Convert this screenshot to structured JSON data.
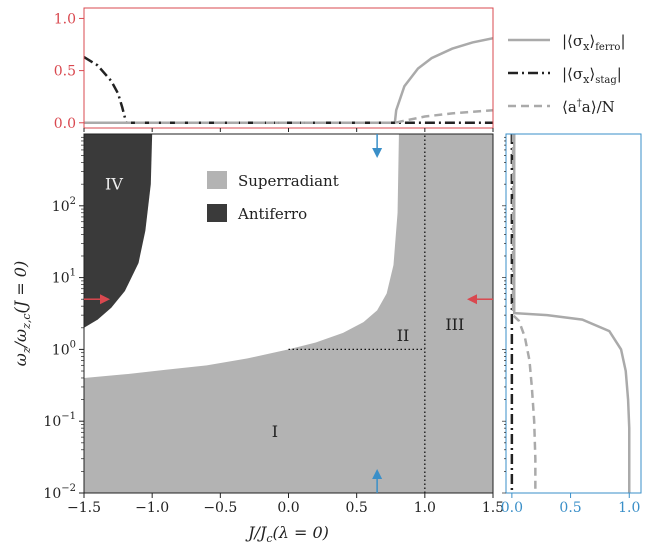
{
  "colors": {
    "superradiant": "#b3b3b3",
    "antiferro": "#3a3a3a",
    "ferro_curve": "#aaaaaa",
    "stag_curve": "#222222",
    "photon_curve": "#aaaaaa",
    "red_accent": "#d9484f",
    "blue_accent": "#3a8fc8"
  },
  "chart_data": [
    {
      "id": "phase-diagram",
      "type": "heatmap",
      "xlabel": "J/J_c(λ = 0)",
      "ylabel": "ω_z/ω_{z,c}(J = 0)",
      "xlim": [
        -1.5,
        1.5
      ],
      "ylim": [
        0.01,
        1000
      ],
      "yscale": "log",
      "xticks": [
        "−1.5",
        "−1.0",
        "−0.5",
        "0.0",
        "0.5",
        "1.0",
        "1.5"
      ],
      "yticks": [
        "10^{-2}",
        "10^{-1}",
        "10^{0}",
        "10^{1}",
        "10^{2}"
      ],
      "legend": [
        {
          "name": "Superradiant",
          "color": "superradiant"
        },
        {
          "name": "Antiferro",
          "color": "antiferro"
        }
      ],
      "legend_position": "top-center",
      "region_labels": [
        {
          "text": "I",
          "x": -0.1,
          "y": 0.06
        },
        {
          "text": "II",
          "x": 0.84,
          "y": 1.3
        },
        {
          "text": "III",
          "x": 1.22,
          "y": 1.85
        },
        {
          "text": "IV",
          "x": -1.28,
          "y": 170
        }
      ],
      "phase_boundary": {
        "x": [
          -1.5,
          -1.2,
          -0.9,
          -0.6,
          -0.3,
          0.0,
          0.2,
          0.4,
          0.55,
          0.65,
          0.72,
          0.77,
          0.8,
          0.81
        ],
        "y": [
          0.4,
          0.45,
          0.52,
          0.6,
          0.75,
          1.0,
          1.25,
          1.7,
          2.4,
          3.5,
          6,
          15,
          80,
          1000
        ]
      },
      "antiferro_boundary": {
        "x": [
          -1.5,
          -1.4,
          -1.3,
          -1.2,
          -1.1,
          -1.05,
          -1.01,
          -1.0
        ],
        "y": [
          2.0,
          2.6,
          3.8,
          6.5,
          16,
          45,
          200,
          1000
        ]
      },
      "dotted_lines": [
        {
          "x": [
            0.0,
            1.0
          ],
          "y": [
            1.0,
            1.0
          ]
        },
        {
          "x": [
            1.0,
            1.0
          ],
          "y": [
            0.01,
            1000
          ]
        }
      ],
      "arrows": [
        {
          "color": "blue_accent",
          "x": 0.65,
          "y": 700,
          "direction": "down"
        },
        {
          "color": "blue_accent",
          "x": 0.65,
          "y": 0.012,
          "direction": "up"
        },
        {
          "color": "red_accent",
          "x": -1.5,
          "y": 5,
          "direction": "right"
        },
        {
          "color": "red_accent",
          "x": 1.5,
          "y": 5,
          "direction": "left"
        }
      ]
    },
    {
      "id": "top-cut",
      "type": "line",
      "xlim": [
        -1.5,
        1.5
      ],
      "ylim": [
        -0.05,
        1.1
      ],
      "yticks": [
        "0.0",
        "0.5",
        "1.0"
      ],
      "series": [
        {
          "name": "|⟨σ_x⟩_ferro|",
          "style": "solid",
          "color": "ferro_curve",
          "x": [
            -1.5,
            0.78,
            0.79,
            0.85,
            0.95,
            1.05,
            1.2,
            1.35,
            1.5
          ],
          "y": [
            0,
            0,
            0.12,
            0.35,
            0.52,
            0.62,
            0.71,
            0.77,
            0.81
          ]
        },
        {
          "name": "|⟨σ_x⟩_stag|",
          "style": "dashdot",
          "color": "stag_curve",
          "x": [
            -1.5,
            -1.4,
            -1.3,
            -1.25,
            -1.22,
            -1.2,
            -1.19,
            1.5
          ],
          "y": [
            0.63,
            0.55,
            0.4,
            0.28,
            0.15,
            0.05,
            0,
            0
          ]
        },
        {
          "name": "⟨a†a⟩/N",
          "style": "dashed",
          "color": "photon_curve",
          "x": [
            -1.5,
            0.78,
            0.85,
            1.0,
            1.2,
            1.5
          ],
          "y": [
            0,
            0,
            0.02,
            0.06,
            0.09,
            0.12
          ]
        }
      ]
    },
    {
      "id": "side-cut",
      "type": "line",
      "xlim": [
        -0.05,
        1.1
      ],
      "ylim": [
        0.01,
        1000
      ],
      "yscale": "log",
      "xticks": [
        "0.0",
        "0.5",
        "1.0"
      ],
      "series": [
        {
          "name": "|⟨σ_x⟩_ferro|",
          "style": "solid",
          "color": "ferro_curve",
          "y": [
            1000,
            3.2,
            3.0,
            2.6,
            1.8,
            1.0,
            0.5,
            0.2,
            0.08,
            0.04,
            0.01
          ],
          "x": [
            0.02,
            0.02,
            0.3,
            0.6,
            0.83,
            0.93,
            0.97,
            0.99,
            1.0,
            1.0,
            1.0
          ]
        },
        {
          "name": "|⟨σ_x⟩_stag|",
          "style": "dashdot",
          "color": "stag_curve",
          "y": [
            1000,
            3.0,
            2.6,
            1.0,
            0.1,
            0.01
          ],
          "x": [
            0.0,
            0.0,
            0.0,
            0.0,
            0.0,
            0.0
          ]
        },
        {
          "name": "⟨a†a⟩/N",
          "style": "dashed",
          "color": "photon_curve",
          "y": [
            1000,
            3.0,
            2.5,
            1.5,
            0.7,
            0.3,
            0.1,
            0.03,
            0.01
          ],
          "x": [
            0.01,
            0.01,
            0.06,
            0.11,
            0.15,
            0.17,
            0.19,
            0.2,
            0.2
          ]
        }
      ]
    }
  ],
  "legend_entries": [
    {
      "label": "|⟨σx⟩ferro|",
      "style": "solid"
    },
    {
      "label": "|⟨σx⟩stag|",
      "style": "dashdot"
    },
    {
      "label": "⟨a†a⟩/N",
      "style": "dashed"
    }
  ]
}
